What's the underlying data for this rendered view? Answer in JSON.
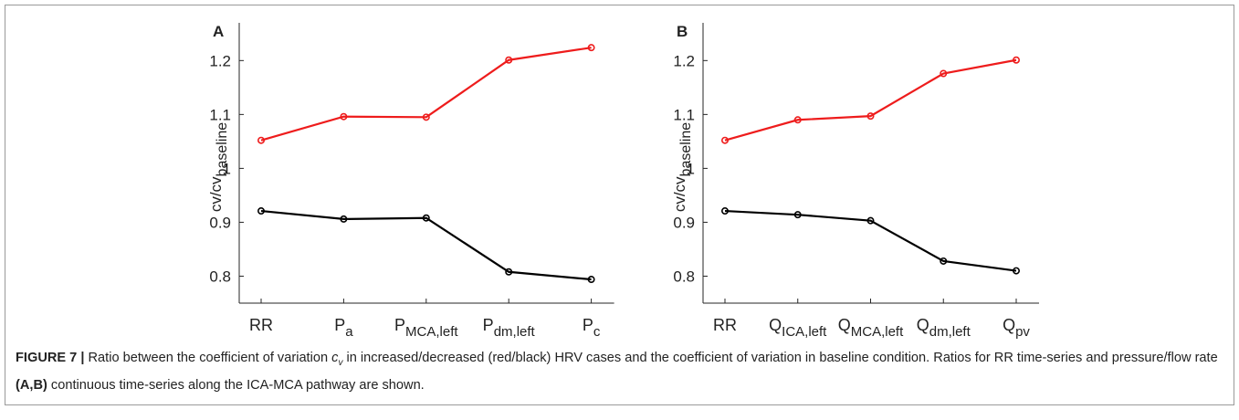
{
  "chart_data": [
    {
      "type": "line",
      "panel": "A",
      "categories": [
        {
          "text": "RR"
        },
        {
          "text": "P",
          "sub": "a"
        },
        {
          "text": "P",
          "sub": "MCA,left"
        },
        {
          "text": "P",
          "sub": "dm,left"
        },
        {
          "text": "P",
          "sub": "c"
        }
      ],
      "y_label": {
        "text": "cv/cv",
        "sub": "baseline"
      },
      "series": [
        {
          "color": "#ee1c1c",
          "values": [
            1.052,
            1.096,
            1.095,
            1.201,
            1.224
          ]
        },
        {
          "color": "#000000",
          "values": [
            0.921,
            0.906,
            0.908,
            0.808,
            0.794
          ]
        }
      ],
      "ylim": [
        0.75,
        1.27
      ],
      "yticks": [
        0.8,
        0.9,
        1,
        1.1,
        1.2
      ]
    },
    {
      "type": "line",
      "panel": "B",
      "categories": [
        {
          "text": "RR"
        },
        {
          "text": "Q",
          "sub": "ICA,left"
        },
        {
          "text": "Q",
          "sub": "MCA,left"
        },
        {
          "text": "Q",
          "sub": "dm,left"
        },
        {
          "text": "Q",
          "sub": "pv"
        }
      ],
      "y_label": {
        "text": "cv/cv",
        "sub": "baseline"
      },
      "series": [
        {
          "color": "#ee1c1c",
          "values": [
            1.052,
            1.09,
            1.097,
            1.176,
            1.201
          ]
        },
        {
          "color": "#000000",
          "values": [
            0.921,
            0.914,
            0.903,
            0.828,
            0.81
          ]
        }
      ],
      "ylim": [
        0.75,
        1.27
      ],
      "yticks": [
        0.8,
        0.9,
        1,
        1.1,
        1.2
      ]
    }
  ],
  "caption": {
    "label": "FIGURE 7 |",
    "text1": " Ratio between the coefficient of variation ",
    "symbol": "c",
    "symbol_sub": "v",
    "text2": " in increased/decreased (red/black) HRV cases and the coefficient of variation in baseline condition. Ratios for RR time-series and pressure/flow rate ",
    "panels": "(A,B)",
    "text3": " continuous time-series along the ICA-MCA pathway are shown."
  }
}
